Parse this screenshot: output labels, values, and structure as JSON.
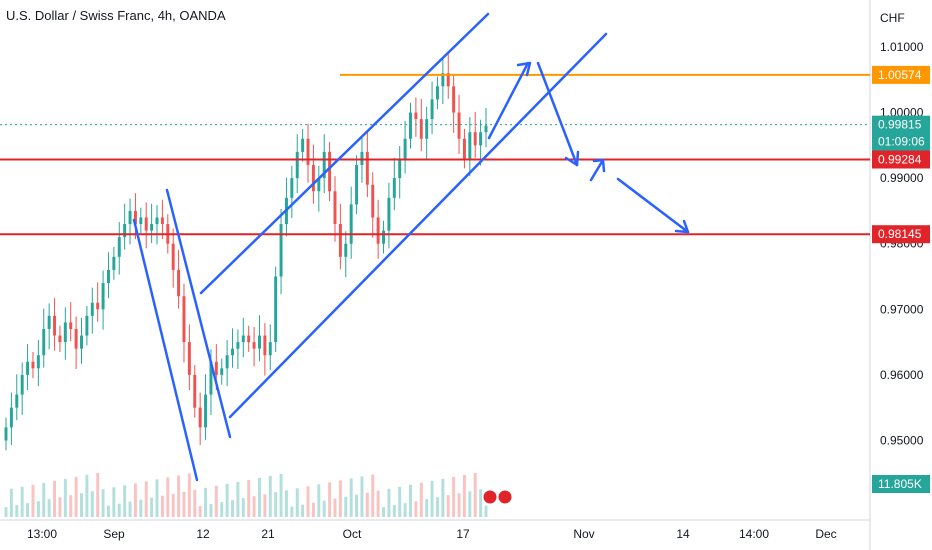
{
  "title": "U.S. Dollar / Swiss Franc, 4h, OANDA",
  "chart_data": {
    "type": "candlestick",
    "symbol": "USDCHF",
    "timeframe": "4h",
    "source": "OANDA",
    "currency": "CHF",
    "ylim": [
      0.9455,
      1.0135
    ],
    "y_ticks": [
      {
        "value": 1.01,
        "label": "1.01000"
      },
      {
        "value": 1.0,
        "label": "1.00000"
      },
      {
        "value": 0.99,
        "label": "0.99000"
      },
      {
        "value": 0.98,
        "label": "0.98000"
      },
      {
        "value": 0.97,
        "label": "0.97000"
      },
      {
        "value": 0.96,
        "label": "0.96000"
      },
      {
        "value": 0.95,
        "label": "0.95000"
      }
    ],
    "x_ticks": [
      "13:00",
      "Sep",
      "12",
      "21",
      "Oct",
      "17",
      "Nov",
      "14",
      "14:00",
      "Dec"
    ],
    "close_series": [
      0.952,
      0.955,
      0.957,
      0.96,
      0.962,
      0.961,
      0.963,
      0.967,
      0.969,
      0.966,
      0.965,
      0.968,
      0.967,
      0.964,
      0.966,
      0.969,
      0.971,
      0.97,
      0.974,
      0.976,
      0.978,
      0.981,
      0.983,
      0.985,
      0.983,
      0.984,
      0.982,
      0.983,
      0.984,
      0.983,
      0.98,
      0.976,
      0.972,
      0.965,
      0.96,
      0.955,
      0.952,
      0.957,
      0.962,
      0.96,
      0.961,
      0.963,
      0.964,
      0.965,
      0.966,
      0.965,
      0.964,
      0.966,
      0.963,
      0.965,
      0.975,
      0.983,
      0.987,
      0.99,
      0.994,
      0.996,
      0.992,
      0.988,
      0.99,
      0.994,
      0.988,
      0.983,
      0.978,
      0.98,
      0.986,
      0.992,
      0.994,
      0.989,
      0.984,
      0.98,
      0.982,
      0.987,
      0.99,
      0.993,
      0.996,
      1.0,
      0.999,
      0.996,
      0.999,
      1.002,
      1.004,
      1.006,
      1.004,
      1.0,
      0.996,
      0.993,
      0.997,
      0.995,
      0.997,
      0.998
    ],
    "price_labels": [
      {
        "value": 1.00574,
        "label": "1.00574",
        "color": "#ff9800",
        "type": "resistance line"
      },
      {
        "value": 0.99815,
        "label": "0.99815",
        "sublabel": "01:09:06",
        "color": "#26a69a",
        "type": "last price"
      },
      {
        "value": 0.99284,
        "label": "0.99284",
        "color": "#e0242a",
        "type": "support line"
      },
      {
        "value": 0.98145,
        "label": "0.98145",
        "color": "#e0242a",
        "type": "support line"
      }
    ],
    "volume_label": "11.805K",
    "drawings_color": "#2962ff",
    "up_color": "#26a69a",
    "down_color": "#ef5350",
    "grid": false
  }
}
